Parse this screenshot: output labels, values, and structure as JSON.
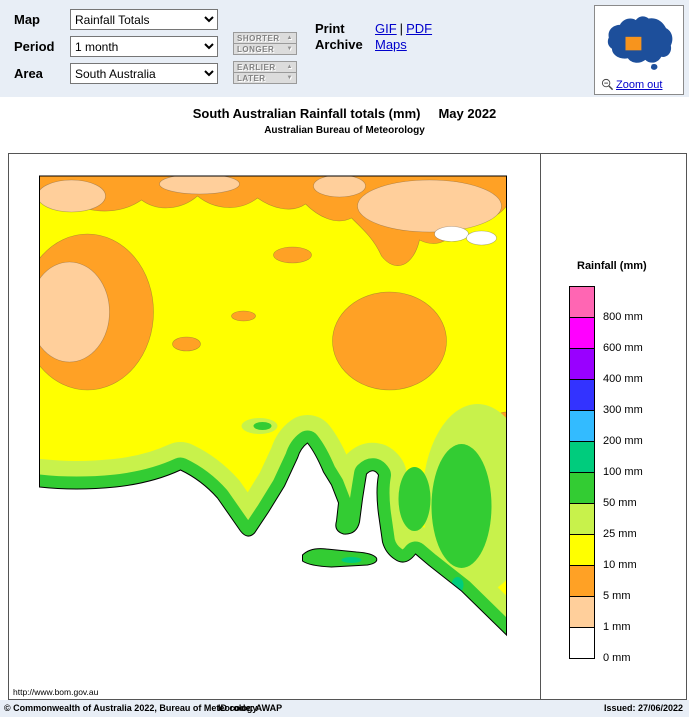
{
  "header": {
    "map_label": "Map",
    "period_label": "Period",
    "area_label": "Area",
    "map_value": "Rainfall Totals",
    "period_value": "1 month",
    "area_value": "South Australia",
    "shorter": "SHORTER",
    "longer": "LONGER",
    "earlier": "EARLIER",
    "later": "LATER",
    "icons": {
      "up": "▲",
      "down": "▼"
    },
    "print_line1": "Print",
    "print_line2": "Archive",
    "gif_link": "GIF",
    "link_separator": "|",
    "pdf_link": "PDF",
    "maps_link": "Maps",
    "zoom_out": "Zoom out",
    "logo": {
      "blue": "#1d4f9b",
      "orange": "#f7941d"
    }
  },
  "title": {
    "heading": "South Australian Rainfall totals (mm)",
    "date": "May 2022",
    "subheading": "Australian Bureau of Meteorology"
  },
  "legend": {
    "title": "Rainfall (mm)",
    "entries": [
      {
        "label": "800 mm",
        "color": "#ff66b3"
      },
      {
        "label": "600 mm",
        "color": "#ff00ff"
      },
      {
        "label": "400 mm",
        "color": "#9900ff"
      },
      {
        "label": "300 mm",
        "color": "#3333ff"
      },
      {
        "label": "200 mm",
        "color": "#33bbff"
      },
      {
        "label": "100 mm",
        "color": "#00cc7d"
      },
      {
        "label": "50 mm",
        "color": "#33cc33"
      },
      {
        "label": "25 mm",
        "color": "#c8f24b"
      },
      {
        "label": "10 mm",
        "color": "#ffff00"
      },
      {
        "label": "5 mm",
        "color": "#ffa125"
      },
      {
        "label": "1 mm",
        "color": "#ffcf9b"
      },
      {
        "label": "0 mm",
        "color": "#ffffff"
      }
    ]
  },
  "map": {
    "watermark": "http://www.bom.gov.au"
  },
  "footer": {
    "copyright": "© Commonwealth of Australia 2022, Bureau of Meteorology",
    "id_code": "ID code: AWAP",
    "issued": "Issued: 27/06/2022"
  }
}
